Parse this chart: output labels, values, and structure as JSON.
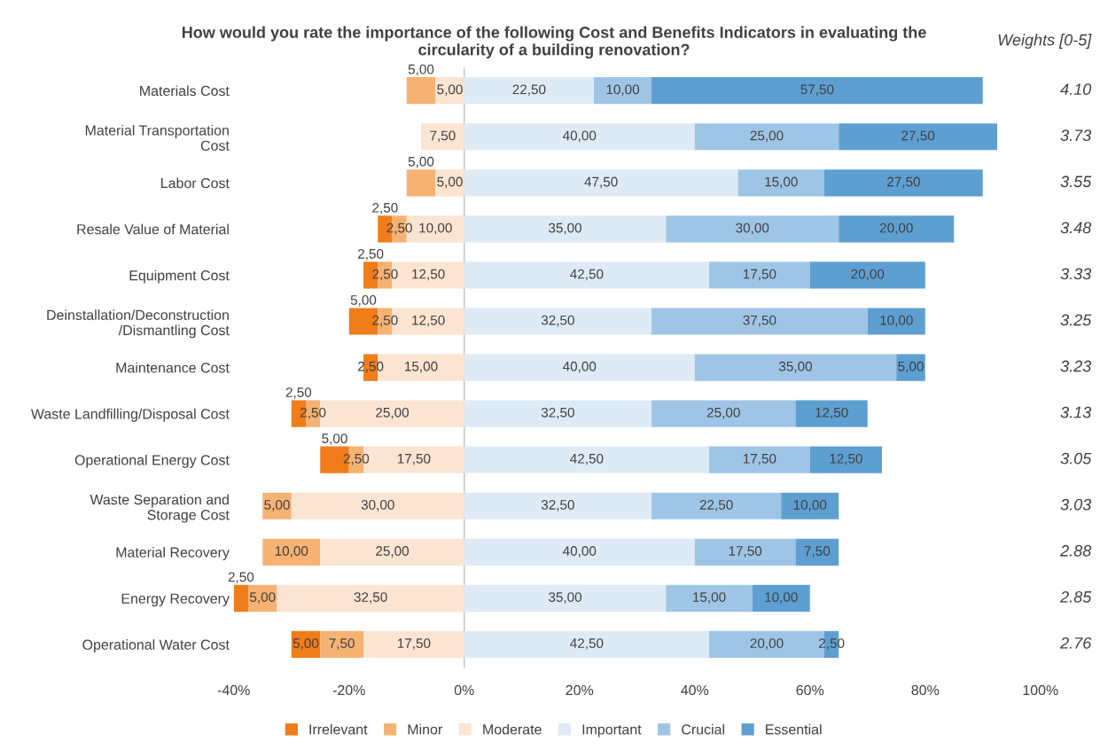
{
  "chart_data": {
    "type": "bar",
    "orientation": "horizontal",
    "title": "How would you rate the importance of the following Cost and Benefits Indicators in evaluating the\ncircularity of a building renovation?",
    "categories": [
      "Materials Cost",
      "Material Transportation\nCost",
      "Labor Cost",
      "Resale Value of Material",
      "Equipment Cost",
      "Deinstallation/Deconstruction\n/Dismantling Cost",
      "Maintenance Cost",
      "Waste Landfilling/Disposal Cost",
      "Operational Energy Cost",
      "Waste Separation and\nStorage Cost",
      "Material Recovery",
      "Energy Recovery",
      "Operational Water Cost"
    ],
    "series": [
      {
        "name": "Irrelevant",
        "color": "#f07c1a",
        "values": [
          null,
          null,
          null,
          2.5,
          2.5,
          5,
          2.5,
          2.5,
          5,
          null,
          null,
          2.5,
          5
        ],
        "base": [
          null,
          null,
          null,
          -15,
          -17.5,
          -20,
          -17.5,
          -30,
          -25,
          null,
          null,
          -40,
          -30
        ],
        "value_labels": [
          null,
          null,
          null,
          "2,50",
          "2,50",
          "5,00",
          "2,50",
          "2,50",
          "5,00",
          null,
          null,
          "2,50",
          "5,00"
        ]
      },
      {
        "name": "Minor",
        "color": "#f6b273",
        "values": [
          5,
          null,
          5,
          2.5,
          2.5,
          2.5,
          null,
          2.5,
          2.5,
          5,
          10,
          5,
          7.5
        ],
        "base": [
          -10,
          null,
          -10,
          -12.5,
          -15,
          -15,
          null,
          -27.5,
          -20,
          -35,
          -35,
          -37.5,
          -25
        ],
        "value_labels": [
          "5,00",
          null,
          "5,00",
          "2,50",
          "2,50",
          "2,50",
          null,
          "2,50",
          "2,50",
          "5,00",
          "10,00",
          "5,00",
          "7,50"
        ]
      },
      {
        "name": "Moderate",
        "color": "#fce4d2",
        "values": [
          5,
          7.5,
          5,
          10,
          12.5,
          12.5,
          15,
          25,
          17.5,
          30,
          25,
          32.5,
          17.5
        ],
        "base": [
          -5,
          -7.5,
          -5,
          -10,
          -12.5,
          -12.5,
          -15,
          -25,
          -17.5,
          -30,
          -25,
          -32.5,
          -17.5
        ],
        "value_labels": [
          "5,00",
          "7,50",
          "5,00",
          "10,00",
          "12,50",
          "12,50",
          "15,00",
          "25,00",
          "17,50",
          "30,00",
          "25,00",
          "32,50",
          "17,50"
        ]
      },
      {
        "name": "Important",
        "color": "#deebf6",
        "values": [
          22.5,
          40,
          47.5,
          35,
          42.5,
          32.5,
          40,
          32.5,
          42.5,
          32.5,
          40,
          35,
          42.5
        ],
        "base": [
          0,
          0,
          0,
          0,
          0,
          0,
          0,
          0,
          0,
          0,
          0,
          0,
          0
        ],
        "value_labels": [
          "22,50",
          "40,00",
          "47,50",
          "35,00",
          "42,50",
          "32,50",
          "40,00",
          "32,50",
          "42,50",
          "32,50",
          "40,00",
          "35,00",
          "42,50"
        ]
      },
      {
        "name": "Crucial",
        "color": "#9fc5e6",
        "values": [
          10,
          25,
          15,
          30,
          17.5,
          37.5,
          35,
          25,
          17.5,
          22.5,
          17.5,
          15,
          20
        ],
        "base": [
          22.5,
          40,
          47.5,
          35,
          42.5,
          32.5,
          40,
          32.5,
          42.5,
          32.5,
          40,
          35,
          42.5
        ],
        "value_labels": [
          "10,00",
          "25,00",
          "15,00",
          "30,00",
          "17,50",
          "37,50",
          "35,00",
          "25,00",
          "17,50",
          "22,50",
          "17,50",
          "15,00",
          "20,00"
        ]
      },
      {
        "name": "Essential",
        "color": "#5e9fd1",
        "values": [
          57.5,
          27.5,
          27.5,
          20,
          20,
          10,
          5,
          12.5,
          12.5,
          10,
          7.5,
          10,
          2.5
        ],
        "base": [
          32.5,
          65,
          62.5,
          65,
          60,
          70,
          75,
          57.5,
          60,
          55,
          57.5,
          50,
          62.5
        ],
        "value_labels": [
          "57,50",
          "27,50",
          "27,50",
          "20,00",
          "20,00",
          "10,00",
          "5,00",
          "12,50",
          "12,50",
          "10,00",
          "7,50",
          "10,00",
          "2,50"
        ]
      }
    ],
    "xlim": [
      -40,
      100
    ],
    "xticks": [
      {
        "value": -40,
        "label": "-40%"
      },
      {
        "value": -20,
        "label": "-20%"
      },
      {
        "value": 0,
        "label": "0%"
      },
      {
        "value": 20,
        "label": "20%"
      },
      {
        "value": 40,
        "label": "40%"
      },
      {
        "value": 60,
        "label": "60%"
      },
      {
        "value": 80,
        "label": "80%"
      },
      {
        "value": 100,
        "label": "100%"
      }
    ],
    "annotations": [
      "Weights [0-5]",
      "4.10",
      "3.73",
      "3.55",
      "3.48",
      "3.33",
      "3.25",
      "3.23",
      "3.13",
      "3.05",
      "3.03",
      "2.88",
      "2.85",
      "2.76"
    ],
    "ref_lines": [
      {
        "axis": "x",
        "value": 0,
        "color": "#bfbfbf"
      }
    ],
    "legend": "bottom"
  }
}
